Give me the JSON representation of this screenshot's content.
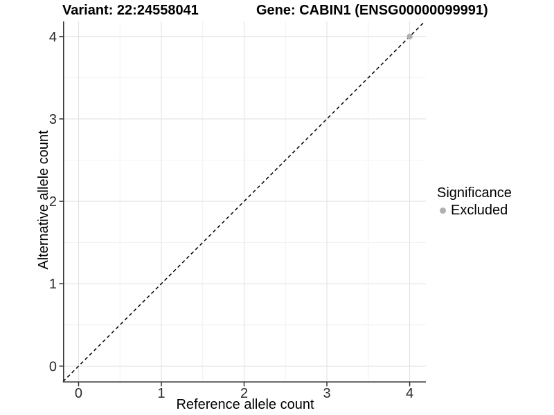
{
  "titles": {
    "variant": "Variant: 22:24558041",
    "gene": "Gene: CABIN1 (ENSG00000099991)"
  },
  "chart_data": {
    "type": "scatter",
    "title": "Variant: 22:24558041 | Gene: CABIN1 (ENSG00000099991)",
    "xlabel": "Reference allele count",
    "ylabel": "Alternative allele count",
    "xlim": [
      -0.188,
      4.196
    ],
    "ylim": [
      -0.199,
      4.183
    ],
    "x_ticks": [
      0,
      1,
      2,
      3,
      4
    ],
    "y_ticks": [
      0,
      1,
      2,
      3,
      4
    ],
    "x_minor_ticks": [
      0.5,
      1.5,
      2.5,
      3.5
    ],
    "y_minor_ticks": [
      0.5,
      1.5,
      2.5,
      3.5
    ],
    "grid": true,
    "points": [
      {
        "x": 4,
        "y": 4,
        "series": "Excluded"
      }
    ],
    "reference_line": {
      "type": "identity",
      "equation": "y = x",
      "style": "dashed",
      "color": "#000000"
    },
    "legend": {
      "title": "Significance",
      "position": "right",
      "items": [
        {
          "label": "Excluded",
          "color": "#b0b0b0"
        }
      ]
    },
    "colors": {
      "background": "#ffffff",
      "grid_major": "#e2e2e2",
      "grid_minor": "#f1f1f1",
      "axis_line": "#333333",
      "tick_text": "#2b2b2b",
      "point_excluded": "#b0b0b0"
    }
  }
}
